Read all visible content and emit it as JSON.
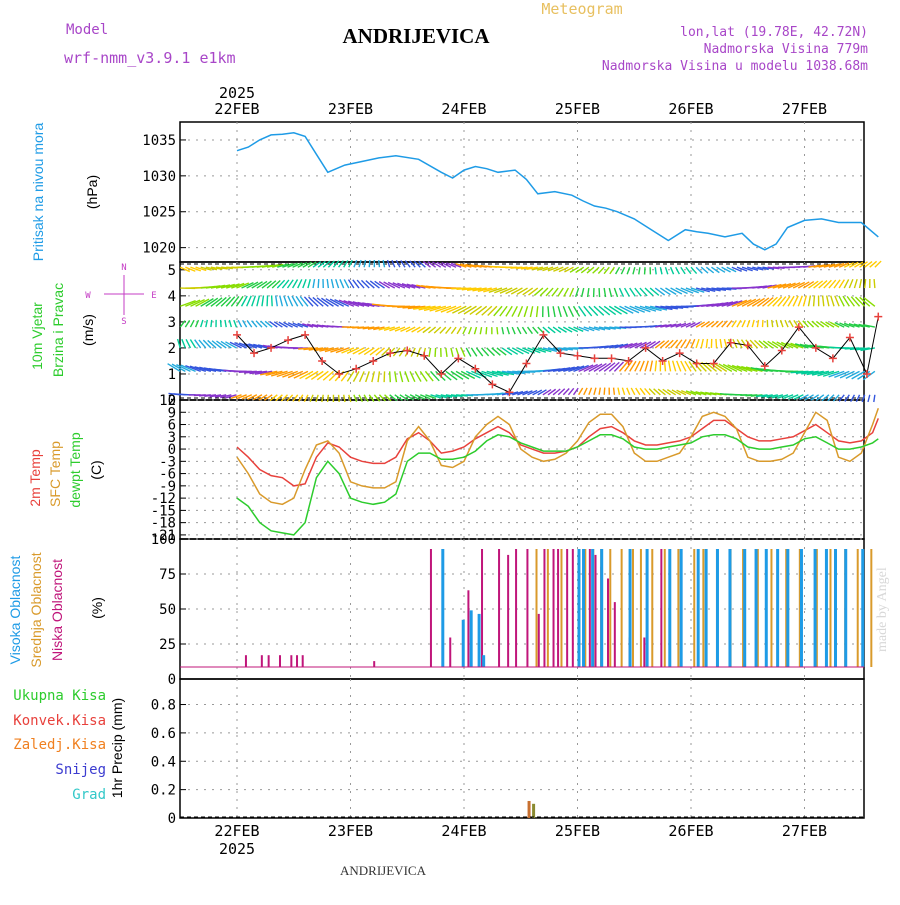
{
  "header": {
    "location": "ANDRIJEVICA",
    "meteogram": "Meteogram",
    "model_label": "Model",
    "model_name": "wrf-nmm_v3.9.1 e1km",
    "lonlat": "lon,lat (19.78E, 42.72N)",
    "altitude": "Nadmorska Visina 779m",
    "model_altitude": "Nadmorska Visina u modelu 1038.68m",
    "footer_location": "ANDRIJEVICA",
    "watermark": "made by Angel",
    "year": "2025"
  },
  "colors": {
    "pressure": "#1e9be6",
    "temp2m": "#e8413c",
    "sfc": "#d99a2b",
    "dewpt": "#2dcc2d",
    "high_cloud": "#1e9be6",
    "mid_cloud": "#d99a2b",
    "low_cloud": "#c0157a",
    "total_precip": "#2dcc2d",
    "conv_precip": "#e8413c",
    "frozen_precip": "#f08020",
    "snow": "#3c3cd0",
    "graupel": "#32c8c8",
    "wind_label": "#c43cc4"
  },
  "chart_data": [
    {
      "type": "line",
      "panel": "pressure",
      "ylabel": [
        "Pritisak na nivou mora",
        "(hPa)"
      ],
      "xlabels": [
        "22FEB",
        "23FEB",
        "24FEB",
        "25FEB",
        "26FEB",
        "27FEB"
      ],
      "ylim": [
        1018,
        1037.5
      ],
      "yticks": [
        1020,
        1025,
        1030,
        1035
      ],
      "grid": true,
      "series": [
        {
          "x": [
            0,
            0.1,
            0.2,
            0.3,
            0.4,
            0.5,
            0.6,
            0.7,
            0.8,
            0.95,
            1.1,
            1.25,
            1.4,
            1.6,
            1.8,
            1.9,
            2.0,
            2.1,
            2.2,
            2.3,
            2.45,
            2.55,
            2.65,
            2.8,
            2.95,
            3.05,
            3.15,
            3.25,
            3.35,
            3.5,
            3.65,
            3.8,
            3.95,
            4.05,
            4.15,
            4.3,
            4.45,
            4.55,
            4.65,
            4.75,
            4.85,
            5.0,
            5.15,
            5.3,
            5.5,
            5.65
          ],
          "y": [
            1033.5,
            1034.0,
            1035.0,
            1035.7,
            1035.8,
            1036.0,
            1035.5,
            1033.0,
            1030.5,
            1031.5,
            1032.0,
            1032.5,
            1032.8,
            1032.3,
            1030.5,
            1029.7,
            1030.8,
            1031.3,
            1031.0,
            1030.5,
            1030.8,
            1029.5,
            1027.5,
            1027.8,
            1027.3,
            1026.5,
            1025.8,
            1025.5,
            1025.0,
            1024.0,
            1022.5,
            1021.0,
            1022.5,
            1022.2,
            1022.0,
            1021.5,
            1022.0,
            1020.5,
            1019.7,
            1020.5,
            1022.8,
            1023.8,
            1024.0,
            1023.5,
            1023.5,
            1021.5
          ]
        }
      ]
    },
    {
      "type": "line",
      "panel": "wind",
      "ylabel": [
        "10m Vjetar",
        "Brzina i Pravac",
        "(m/s)"
      ],
      "compass": [
        "N",
        "W",
        "E",
        "S"
      ],
      "ylim": [
        0,
        5.3
      ],
      "yticks": [
        0,
        1,
        2,
        3,
        4,
        5
      ],
      "grid": true,
      "series": [
        {
          "name": "wind speed",
          "x": [
            0,
            0.15,
            0.3,
            0.45,
            0.6,
            0.75,
            0.9,
            1.05,
            1.2,
            1.35,
            1.5,
            1.65,
            1.8,
            1.95,
            2.1,
            2.25,
            2.4,
            2.55,
            2.7,
            2.85,
            3.0,
            3.15,
            3.3,
            3.45,
            3.6,
            3.75,
            3.9,
            4.05,
            4.2,
            4.35,
            4.5,
            4.65,
            4.8,
            4.95,
            5.1,
            5.25,
            5.4,
            5.55,
            5.65
          ],
          "y": [
            2.5,
            1.8,
            2.0,
            2.3,
            2.5,
            1.5,
            1.0,
            1.2,
            1.5,
            1.8,
            1.9,
            1.7,
            1.0,
            1.6,
            1.2,
            0.6,
            0.3,
            1.4,
            2.5,
            1.8,
            1.7,
            1.6,
            1.6,
            1.5,
            2.0,
            1.5,
            1.8,
            1.4,
            1.4,
            2.2,
            2.1,
            1.3,
            1.9,
            2.8,
            2.0,
            1.6,
            2.4,
            1.0,
            3.2
          ]
        }
      ]
    },
    {
      "type": "line",
      "panel": "temperature",
      "ylabel": [
        "2m Temp",
        "SFC Temp",
        "dewpt Temp",
        "(C)"
      ],
      "ylim": [
        -22,
        12
      ],
      "yticks": [
        -21,
        -18,
        -15,
        -12,
        -9,
        -6,
        -3,
        0,
        3,
        6,
        9,
        12
      ],
      "grid": true,
      "series": [
        {
          "name": "2m Temp",
          "x": [
            0,
            0.1,
            0.2,
            0.3,
            0.4,
            0.5,
            0.6,
            0.7,
            0.8,
            0.9,
            1.0,
            1.1,
            1.2,
            1.3,
            1.4,
            1.5,
            1.6,
            1.7,
            1.8,
            1.9,
            2.0,
            2.1,
            2.2,
            2.3,
            2.4,
            2.5,
            2.6,
            2.7,
            2.8,
            2.9,
            3.0,
            3.1,
            3.2,
            3.3,
            3.4,
            3.5,
            3.6,
            3.7,
            3.8,
            3.9,
            4.0,
            4.1,
            4.2,
            4.3,
            4.4,
            4.5,
            4.6,
            4.7,
            4.8,
            4.9,
            5.0,
            5.1,
            5.2,
            5.3,
            5.4,
            5.5,
            5.6,
            5.65
          ],
          "y": [
            0.5,
            -2.0,
            -5.0,
            -6.5,
            -7.0,
            -9.0,
            -8.5,
            -2.0,
            1.5,
            0.5,
            -2.0,
            -3.0,
            -3.5,
            -3.5,
            -2.0,
            2.5,
            4.0,
            2.0,
            -1.0,
            -0.5,
            0.5,
            2.5,
            4.0,
            5.5,
            4.0,
            1.0,
            0.0,
            -1.0,
            -1.0,
            -0.5,
            0.5,
            3.0,
            5.0,
            5.5,
            4.0,
            2.0,
            1.0,
            1.0,
            1.5,
            2.0,
            3.0,
            5.0,
            7.0,
            7.0,
            5.0,
            3.0,
            2.0,
            2.0,
            2.5,
            3.0,
            4.5,
            6.0,
            4.0,
            2.0,
            1.5,
            2.0,
            4.0,
            7.5
          ]
        },
        {
          "name": "SFC Temp",
          "x": [
            0,
            0.1,
            0.2,
            0.3,
            0.4,
            0.5,
            0.6,
            0.7,
            0.8,
            0.9,
            1.0,
            1.1,
            1.2,
            1.3,
            1.4,
            1.5,
            1.6,
            1.7,
            1.8,
            1.9,
            2.0,
            2.1,
            2.2,
            2.3,
            2.4,
            2.5,
            2.6,
            2.7,
            2.8,
            2.9,
            3.0,
            3.1,
            3.2,
            3.3,
            3.4,
            3.5,
            3.6,
            3.7,
            3.8,
            3.9,
            4.0,
            4.1,
            4.2,
            4.3,
            4.4,
            4.5,
            4.6,
            4.7,
            4.8,
            4.9,
            5.0,
            5.1,
            5.2,
            5.3,
            5.4,
            5.5,
            5.6,
            5.65
          ],
          "y": [
            -2.0,
            -6.0,
            -11.0,
            -13.0,
            -13.5,
            -12.0,
            -5.0,
            1.0,
            2.0,
            -1.0,
            -8.0,
            -9.0,
            -9.5,
            -9.5,
            -8.0,
            2.0,
            5.5,
            2.0,
            -4.0,
            -4.5,
            -3.0,
            3.0,
            6.0,
            8.0,
            6.0,
            0.0,
            -2.0,
            -3.0,
            -2.5,
            -1.0,
            2.0,
            6.5,
            8.5,
            8.5,
            5.5,
            -1.0,
            -3.0,
            -3.0,
            -2.0,
            -1.0,
            3.0,
            8.0,
            9.0,
            8.0,
            5.0,
            -2.0,
            -3.0,
            -3.0,
            -2.5,
            -1.0,
            4.0,
            9.0,
            7.0,
            -2.0,
            -3.0,
            -1.0,
            6.0,
            10.0
          ]
        },
        {
          "name": "dewpt Temp",
          "x": [
            0,
            0.1,
            0.2,
            0.3,
            0.4,
            0.5,
            0.6,
            0.7,
            0.8,
            0.9,
            1.0,
            1.1,
            1.2,
            1.3,
            1.4,
            1.5,
            1.6,
            1.7,
            1.8,
            1.9,
            2.0,
            2.1,
            2.2,
            2.3,
            2.4,
            2.5,
            2.6,
            2.7,
            2.8,
            2.9,
            3.0,
            3.1,
            3.2,
            3.3,
            3.4,
            3.5,
            3.6,
            3.7,
            3.8,
            3.9,
            4.0,
            4.1,
            4.2,
            4.3,
            4.4,
            4.5,
            4.6,
            4.7,
            4.8,
            4.9,
            5.0,
            5.1,
            5.2,
            5.3,
            5.4,
            5.5,
            5.6,
            5.65
          ],
          "y": [
            -12.0,
            -14.0,
            -18.0,
            -20.0,
            -20.5,
            -21.0,
            -18.0,
            -7.0,
            -3.0,
            -6.0,
            -12.0,
            -13.0,
            -13.5,
            -13.0,
            -11.0,
            -3.0,
            -1.0,
            -1.0,
            -2.5,
            -2.5,
            -2.0,
            -0.5,
            2.0,
            3.5,
            3.0,
            1.5,
            0.5,
            -0.5,
            -0.5,
            -0.5,
            0.5,
            2.0,
            3.5,
            3.5,
            2.5,
            0.5,
            0.0,
            0.0,
            0.5,
            1.0,
            1.5,
            3.0,
            3.5,
            3.5,
            2.5,
            0.5,
            0.0,
            0.0,
            0.5,
            1.0,
            2.5,
            3.0,
            1.5,
            0.0,
            0.0,
            0.5,
            1.5,
            2.5
          ]
        }
      ]
    },
    {
      "type": "bar",
      "panel": "cloud",
      "ylabel": [
        "Visoka Oblacnost",
        "Srednja Oblacnost",
        "Niska Oblacnost",
        "(%)"
      ],
      "ylim": [
        0,
        100
      ],
      "yticks": [
        0,
        25,
        50,
        75,
        100
      ],
      "grid": true,
      "series": [
        {
          "name": "Niska Oblacnost",
          "x": [
            0.07,
            0.21,
            0.27,
            0.37,
            0.47,
            0.52,
            0.57,
            1.2,
            1.7,
            1.87,
            2.03,
            2.15,
            2.3,
            2.38,
            2.45,
            2.55,
            2.65,
            2.7,
            2.78,
            2.82,
            2.9,
            2.95,
            3.0,
            3.05,
            3.1,
            3.15,
            3.2,
            3.26,
            3.32,
            3.45,
            3.58,
            3.73
          ],
          "y": [
            10,
            10,
            10,
            10,
            10,
            10,
            10,
            5,
            100,
            25,
            65,
            100,
            100,
            95,
            100,
            100,
            45,
            100,
            100,
            100,
            100,
            100,
            100,
            100,
            100,
            95,
            85,
            75,
            55,
            25,
            25,
            100
          ]
        },
        {
          "name": "Srednja Oblacnost",
          "x": [
            2.63,
            2.73,
            2.85,
            3.06,
            3.13,
            3.2,
            3.28,
            3.38,
            3.48,
            3.55,
            3.65,
            3.76,
            3.88,
            4.02,
            4.1,
            4.22,
            4.34,
            4.45,
            4.58,
            4.7,
            4.83,
            4.95,
            5.1,
            5.22,
            5.35,
            5.46,
            5.58
          ],
          "y": [
            100,
            100,
            100,
            100,
            100,
            100,
            100,
            100,
            100,
            100,
            100,
            100,
            100,
            100,
            100,
            100,
            100,
            100,
            100,
            100,
            100,
            100,
            100,
            100,
            100,
            100,
            100
          ]
        },
        {
          "name": "Visoka Oblacnost",
          "x": [
            1.8,
            1.98,
            2.05,
            2.12,
            2.16,
            3.0,
            3.04,
            3.12,
            3.2,
            3.45,
            3.6,
            3.8,
            3.9,
            4.05,
            4.12,
            4.22,
            4.33,
            4.46,
            4.56,
            4.65,
            4.75,
            4.84,
            4.96,
            5.08,
            5.18,
            5.26,
            5.35,
            5.5
          ],
          "y": [
            100,
            40,
            48,
            45,
            10,
            100,
            100,
            100,
            100,
            100,
            100,
            100,
            100,
            100,
            100,
            100,
            100,
            100,
            100,
            100,
            100,
            100,
            100,
            100,
            100,
            100,
            100,
            100
          ]
        }
      ]
    },
    {
      "type": "bar",
      "panel": "precip",
      "ylabel": [
        "1hr Precip (mm)"
      ],
      "legend": [
        "Ukupna Kisa",
        "Konvek.Kisa",
        "Zaledj.Kisa",
        "Snijeg",
        "Grad"
      ],
      "ylim": [
        0,
        0.98
      ],
      "yticks": [
        0,
        0.2,
        0.4,
        0.6,
        0.8
      ],
      "grid": true,
      "series": [
        {
          "name": "Ukupna Kisa",
          "x": [
            2.56,
            2.6
          ],
          "y": [
            0.12,
            0.1
          ]
        }
      ]
    }
  ]
}
